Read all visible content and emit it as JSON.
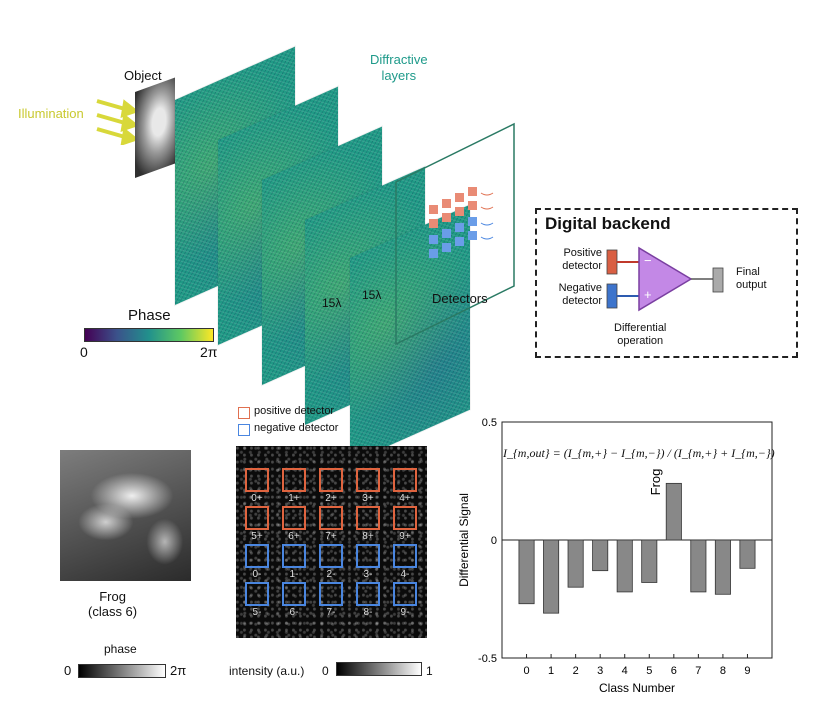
{
  "top": {
    "illumination_label": "Illumination",
    "object_label": "Object",
    "diffractive_layers_label": "Diffractive\nlayers",
    "dim_label_1": "15λ",
    "dim_label_2": "15λ",
    "detectors_label": "Detectors",
    "phase_colorbar": {
      "title": "Phase",
      "min_label": "0",
      "max_label": "2π"
    },
    "colors": {
      "layer": "#1f9a85",
      "illumination": "#d8d83a",
      "diffractive_label": "#1e9a8a",
      "positive": "#e07050",
      "negative": "#4a86e0",
      "opamp": "#c388e6"
    }
  },
  "digital_backend": {
    "title": "Digital backend",
    "positive_detector_label": "Positive\ndetector",
    "negative_detector_label": "Negative\ndetector",
    "minus_sign": "−",
    "plus_sign": "+",
    "final_output_label": "Final\noutput",
    "operation_label": "Differential\noperation"
  },
  "bottom_left": {
    "caption": "Frog\n(class 6)",
    "phase_colorbar": {
      "title": "phase",
      "min_label": "0",
      "max_label": "2π"
    }
  },
  "bottom_middle": {
    "legend_positive": "positive detector",
    "legend_negative": "negative detector",
    "detector_labels_positive": [
      "0+",
      "1+",
      "2+",
      "3+",
      "4+",
      "5+",
      "6+",
      "7+",
      "8+",
      "9+"
    ],
    "detector_labels_negative": [
      "0-",
      "1-",
      "2-",
      "3-",
      "4-",
      "5-",
      "6-",
      "7-",
      "8-",
      "9-"
    ],
    "intensity_colorbar": {
      "title": "intensity (a.u.)",
      "min_label": "0",
      "max_label": "1"
    }
  },
  "chart_data": {
    "type": "bar",
    "categories": [
      "0",
      "1",
      "2",
      "3",
      "4",
      "5",
      "6",
      "7",
      "8",
      "9"
    ],
    "values": [
      -0.27,
      -0.31,
      -0.2,
      -0.13,
      -0.22,
      -0.18,
      0.24,
      -0.22,
      -0.23,
      -0.12
    ],
    "ytick_labels": [
      "0.5",
      "0",
      "-0.5"
    ],
    "yticks": [
      0.5,
      0,
      -0.5
    ],
    "ylim": [
      -0.5,
      0.5
    ],
    "xlabel": "Class Number",
    "ylabel": "Differential Signal",
    "bar_annotation": {
      "category": "6",
      "text": "Frog"
    },
    "formula": "I_{m,out} = (I_{m,+} − I_{m,−}) / (I_{m,+} + I_{m,−})",
    "bar_color": "#888888"
  }
}
